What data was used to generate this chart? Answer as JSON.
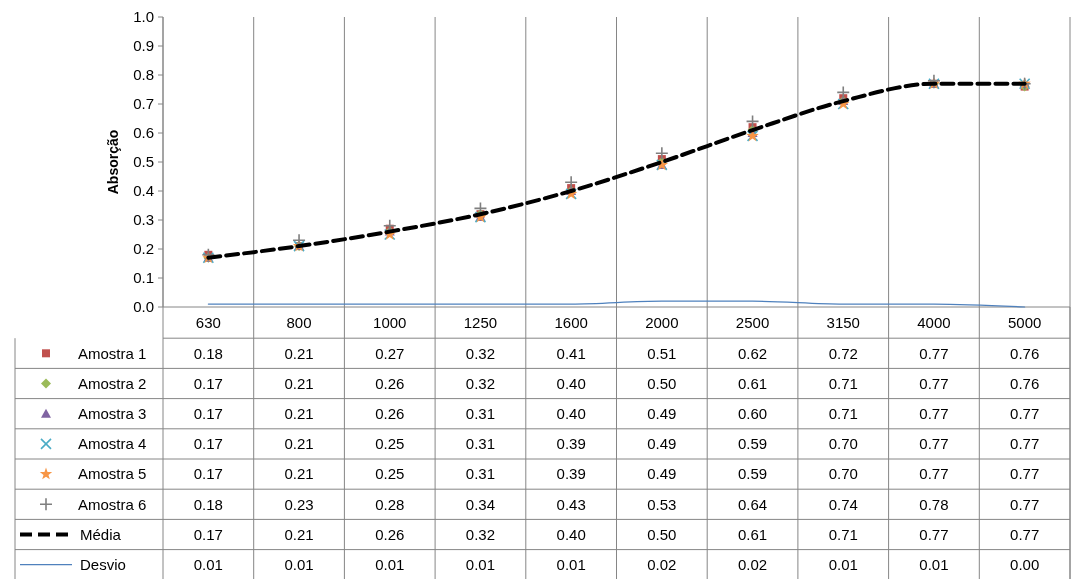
{
  "chart_data": {
    "type": "line",
    "ylabel": "Absorção",
    "categories": [
      "630",
      "800",
      "1000",
      "1250",
      "1600",
      "2000",
      "2500",
      "3150",
      "4000",
      "5000"
    ],
    "ylim": [
      0,
      1
    ],
    "yticks": [
      {
        "value": 0,
        "label": "0.0"
      },
      {
        "value": 0.1,
        "label": "0.1"
      },
      {
        "value": 0.2,
        "label": "0.2"
      },
      {
        "value": 0.3,
        "label": "0.3"
      },
      {
        "value": 0.4,
        "label": "0.4"
      },
      {
        "value": 0.5,
        "label": "0.5"
      },
      {
        "value": 0.6,
        "label": "0.6"
      },
      {
        "value": 0.7,
        "label": "0.7"
      },
      {
        "value": 0.8,
        "label": "0.8"
      },
      {
        "value": 0.9,
        "label": "0.9"
      },
      {
        "value": 1,
        "label": "1.0"
      }
    ],
    "grid": "x",
    "legend": "bottom",
    "series": [
      {
        "name": "Amostra 1",
        "type": "scatter",
        "marker": "square",
        "color": "#c0504d",
        "values": [
          0.18,
          0.21,
          0.27,
          0.32,
          0.41,
          0.51,
          0.62,
          0.72,
          0.77,
          0.76
        ],
        "value_labels": [
          "0.18",
          "0.21",
          "0.27",
          "0.32",
          "0.41",
          "0.51",
          "0.62",
          "0.72",
          "0.77",
          "0.76"
        ]
      },
      {
        "name": "Amostra 2",
        "type": "scatter",
        "marker": "diamond",
        "color": "#9bbb59",
        "values": [
          0.17,
          0.21,
          0.26,
          0.32,
          0.4,
          0.5,
          0.61,
          0.71,
          0.77,
          0.76
        ],
        "value_labels": [
          "0.17",
          "0.21",
          "0.26",
          "0.32",
          "0.40",
          "0.50",
          "0.61",
          "0.71",
          "0.77",
          "0.76"
        ]
      },
      {
        "name": "Amostra 3",
        "type": "scatter",
        "marker": "triangle",
        "color": "#8064a2",
        "values": [
          0.17,
          0.21,
          0.26,
          0.31,
          0.4,
          0.49,
          0.6,
          0.71,
          0.77,
          0.77
        ],
        "value_labels": [
          "0.17",
          "0.21",
          "0.26",
          "0.31",
          "0.40",
          "0.49",
          "0.60",
          "0.71",
          "0.77",
          "0.77"
        ]
      },
      {
        "name": "Amostra 4",
        "type": "scatter",
        "marker": "x",
        "color": "#4bacc6",
        "values": [
          0.17,
          0.21,
          0.25,
          0.31,
          0.39,
          0.49,
          0.59,
          0.7,
          0.77,
          0.77
        ],
        "value_labels": [
          "0.17",
          "0.21",
          "0.25",
          "0.31",
          "0.39",
          "0.49",
          "0.59",
          "0.70",
          "0.77",
          "0.77"
        ]
      },
      {
        "name": "Amostra 5",
        "type": "scatter",
        "marker": "star",
        "color": "#f79646",
        "values": [
          0.17,
          0.21,
          0.25,
          0.31,
          0.39,
          0.49,
          0.59,
          0.7,
          0.77,
          0.77
        ],
        "value_labels": [
          "0.17",
          "0.21",
          "0.25",
          "0.31",
          "0.39",
          "0.49",
          "0.59",
          "0.70",
          "0.77",
          "0.77"
        ]
      },
      {
        "name": "Amostra 6",
        "type": "scatter",
        "marker": "cross",
        "color": "#7f7f7f",
        "values": [
          0.18,
          0.23,
          0.28,
          0.34,
          0.43,
          0.53,
          0.64,
          0.74,
          0.78,
          0.77
        ],
        "value_labels": [
          "0.18",
          "0.23",
          "0.28",
          "0.34",
          "0.43",
          "0.53",
          "0.64",
          "0.74",
          "0.78",
          "0.77"
        ]
      },
      {
        "name": "Média",
        "type": "line",
        "marker": "none",
        "line_style": "dashed",
        "color": "#000000",
        "values": [
          0.17,
          0.21,
          0.26,
          0.32,
          0.4,
          0.5,
          0.61,
          0.71,
          0.77,
          0.77
        ],
        "value_labels": [
          "0.17",
          "0.21",
          "0.26",
          "0.32",
          "0.40",
          "0.50",
          "0.61",
          "0.71",
          "0.77",
          "0.77"
        ]
      },
      {
        "name": "Desvio",
        "type": "line",
        "marker": "none",
        "line_style": "solid",
        "color": "#4f81bd",
        "values": [
          0.01,
          0.01,
          0.01,
          0.01,
          0.01,
          0.02,
          0.02,
          0.01,
          0.01,
          0.0
        ],
        "value_labels": [
          "0.01",
          "0.01",
          "0.01",
          "0.01",
          "0.01",
          "0.02",
          "0.02",
          "0.01",
          "0.01",
          "0.00"
        ]
      }
    ]
  }
}
